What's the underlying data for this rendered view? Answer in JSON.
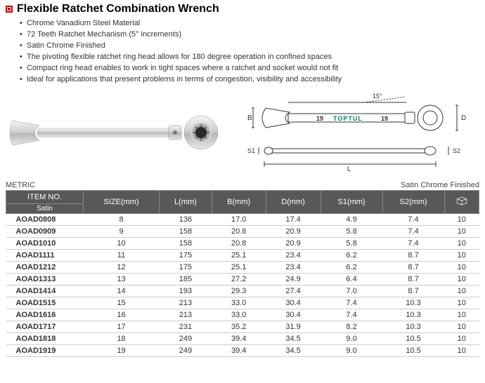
{
  "title": "Flexible Ratchet Combination Wrench",
  "features": [
    "Chrome Vanadium Steel Material",
    "72 Teeth Ratchet Mechanism (5° increments)",
    "Satin Chrome Finished",
    "The pivoting flexible ratchet ring head allows for 180 degree operation in confined spaces",
    "Compact ring head enables to work in tight spaces where a ratchet and socket would not fit",
    "Ideal for applications that present problems in terms of congestion, visibility and accessibility"
  ],
  "diagram": {
    "brand": "TOPTUL",
    "size_label": "19",
    "angle_label": "15°",
    "labels": {
      "B": "B",
      "D": "D",
      "L": "L",
      "S1": "S1",
      "S2": "S2"
    }
  },
  "table": {
    "metric_label": "METRIC",
    "finish_label": "Satin Chrome Finished",
    "subheader": "Satin",
    "columns": [
      "ITEM NO.",
      "SIZE(mm)",
      "L(mm)",
      "B(mm)",
      "D(mm)",
      "S1(mm)",
      "S2(mm)",
      ""
    ],
    "rows": [
      [
        "AOAD0808",
        "8",
        "136",
        "17.0",
        "17.4",
        "4.9",
        "7.4",
        "10"
      ],
      [
        "AOAD0909",
        "9",
        "158",
        "20.8",
        "20.9",
        "5.8",
        "7.4",
        "10"
      ],
      [
        "AOAD1010",
        "10",
        "158",
        "20.8",
        "20.9",
        "5.8",
        "7.4",
        "10"
      ],
      [
        "AOAD1111",
        "11",
        "175",
        "25.1",
        "23.4",
        "6.2",
        "8.7",
        "10"
      ],
      [
        "AOAD1212",
        "12",
        "175",
        "25.1",
        "23.4",
        "6.2",
        "8.7",
        "10"
      ],
      [
        "AOAD1313",
        "13",
        "185",
        "27.2",
        "24.9",
        "6.4",
        "8.7",
        "10"
      ],
      [
        "AOAD1414",
        "14",
        "193",
        "29.3",
        "27.4",
        "7.0",
        "8.7",
        "10"
      ],
      [
        "AOAD1515",
        "15",
        "213",
        "33.0",
        "30.4",
        "7.4",
        "10.3",
        "10"
      ],
      [
        "AOAD1616",
        "16",
        "213",
        "33.0",
        "30.4",
        "7.4",
        "10.3",
        "10"
      ],
      [
        "AOAD1717",
        "17",
        "231",
        "35.2",
        "31.9",
        "8.2",
        "10.3",
        "10"
      ],
      [
        "AOAD1818",
        "18",
        "249",
        "39.4",
        "34.5",
        "9.0",
        "10.5",
        "10"
      ],
      [
        "AOAD1919",
        "19",
        "249",
        "39.4",
        "34.5",
        "9.0",
        "10.5",
        "10"
      ]
    ]
  },
  "style": {
    "accent": "#cc0000",
    "header_bg": "#58585a",
    "row_border": "#cccccc"
  }
}
